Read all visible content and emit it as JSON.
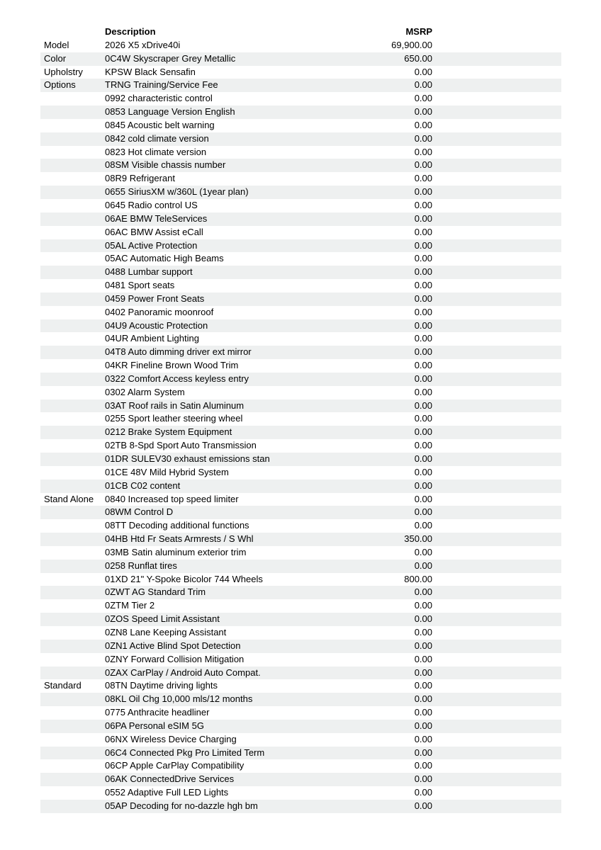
{
  "document": {
    "type": "vehicle-pricing-sheet"
  },
  "colors": {
    "background": "#ffffff",
    "stripe": "#eef0f0",
    "text": "#000000"
  },
  "table": {
    "header": {
      "category": "",
      "description": "Description",
      "msrp": "MSRP"
    },
    "rows": [
      {
        "category": "Model",
        "description": "2026 X5 xDrive40i",
        "msrp": "69,900.00"
      },
      {
        "category": "Color",
        "description": "0C4W Skyscraper Grey Metallic",
        "msrp": "650.00"
      },
      {
        "category": "Upholstry",
        "description": "KPSW Black Sensafin",
        "msrp": "0.00"
      },
      {
        "category": "Options",
        "description": "TRNG Training/Service Fee",
        "msrp": "0.00"
      },
      {
        "category": "",
        "description": "0992 characteristic control",
        "msrp": "0.00"
      },
      {
        "category": "",
        "description": "0853 Language Version English",
        "msrp": "0.00"
      },
      {
        "category": "",
        "description": "0845 Acoustic belt warning",
        "msrp": "0.00"
      },
      {
        "category": "",
        "description": "0842 cold climate version",
        "msrp": "0.00"
      },
      {
        "category": "",
        "description": "0823 Hot climate version",
        "msrp": "0.00"
      },
      {
        "category": "",
        "description": "08SM Visible chassis number",
        "msrp": "0.00"
      },
      {
        "category": "",
        "description": "08R9 Refrigerant",
        "msrp": "0.00"
      },
      {
        "category": "",
        "description": "0655 SiriusXM w/360L (1year plan)",
        "msrp": "0.00"
      },
      {
        "category": "",
        "description": "0645 Radio control US",
        "msrp": "0.00"
      },
      {
        "category": "",
        "description": "06AE BMW TeleServices",
        "msrp": "0.00"
      },
      {
        "category": "",
        "description": "06AC BMW Assist eCall",
        "msrp": "0.00"
      },
      {
        "category": "",
        "description": "05AL Active Protection",
        "msrp": "0.00"
      },
      {
        "category": "",
        "description": "05AC Automatic High Beams",
        "msrp": "0.00"
      },
      {
        "category": "",
        "description": "0488 Lumbar support",
        "msrp": "0.00"
      },
      {
        "category": "",
        "description": "0481 Sport seats",
        "msrp": "0.00"
      },
      {
        "category": "",
        "description": "0459 Power Front Seats",
        "msrp": "0.00"
      },
      {
        "category": "",
        "description": "0402 Panoramic moonroof",
        "msrp": "0.00"
      },
      {
        "category": "",
        "description": "04U9 Acoustic Protection",
        "msrp": "0.00"
      },
      {
        "category": "",
        "description": "04UR Ambient Lighting",
        "msrp": "0.00"
      },
      {
        "category": "",
        "description": "04T8 Auto dimming driver ext mirror",
        "msrp": "0.00"
      },
      {
        "category": "",
        "description": "04KR Fineline Brown Wood Trim",
        "msrp": "0.00"
      },
      {
        "category": "",
        "description": "0322 Comfort Access keyless entry",
        "msrp": "0.00"
      },
      {
        "category": "",
        "description": "0302 Alarm System",
        "msrp": "0.00"
      },
      {
        "category": "",
        "description": "03AT Roof rails in Satin Aluminum",
        "msrp": "0.00"
      },
      {
        "category": "",
        "description": "0255 Sport leather steering wheel",
        "msrp": "0.00"
      },
      {
        "category": "",
        "description": "0212 Brake System Equipment",
        "msrp": "0.00"
      },
      {
        "category": "",
        "description": "02TB 8-Spd Sport Auto Transmission",
        "msrp": "0.00"
      },
      {
        "category": "",
        "description": "01DR SULEV30 exhaust emissions stan",
        "msrp": "0.00"
      },
      {
        "category": "",
        "description": "01CE 48V Mild Hybrid System",
        "msrp": "0.00"
      },
      {
        "category": "",
        "description": "01CB C02 content",
        "msrp": "0.00"
      },
      {
        "category": "Stand Alone",
        "description": "0840 Increased top speed limiter",
        "msrp": "0.00"
      },
      {
        "category": "",
        "description": "08WM Control D",
        "msrp": "0.00"
      },
      {
        "category": "",
        "description": "08TT Decoding additional functions",
        "msrp": "0.00"
      },
      {
        "category": "",
        "description": "04HB Htd Fr Seats Armrests / S Whl",
        "msrp": "350.00"
      },
      {
        "category": "",
        "description": "03MB Satin aluminum exterior trim",
        "msrp": "0.00"
      },
      {
        "category": "",
        "description": "0258 Runflat tires",
        "msrp": "0.00"
      },
      {
        "category": "",
        "description": "01XD 21\" Y-Spoke Bicolor 744 Wheels",
        "msrp": "800.00"
      },
      {
        "category": "",
        "description": "0ZWT AG Standard Trim",
        "msrp": "0.00"
      },
      {
        "category": "",
        "description": "0ZTM Tier 2",
        "msrp": "0.00"
      },
      {
        "category": "",
        "description": "0ZOS Speed Limit Assistant",
        "msrp": "0.00"
      },
      {
        "category": "",
        "description": "0ZN8 Lane Keeping Assistant",
        "msrp": "0.00"
      },
      {
        "category": "",
        "description": "0ZN1 Active Blind Spot Detection",
        "msrp": "0.00"
      },
      {
        "category": "",
        "description": "0ZNY Forward Collision Mitigation",
        "msrp": "0.00"
      },
      {
        "category": "",
        "description": "0ZAX CarPlay / Android Auto Compat.",
        "msrp": "0.00"
      },
      {
        "category": "Standard",
        "description": "08TN Daytime driving lights",
        "msrp": "0.00"
      },
      {
        "category": "",
        "description": "08KL Oil Chg 10,000 mls/12 months",
        "msrp": "0.00"
      },
      {
        "category": "",
        "description": "0775 Anthracite headliner",
        "msrp": "0.00"
      },
      {
        "category": "",
        "description": "06PA Personal eSIM 5G",
        "msrp": "0.00"
      },
      {
        "category": "",
        "description": "06NX Wireless Device Charging",
        "msrp": "0.00"
      },
      {
        "category": "",
        "description": "06C4 Connected Pkg Pro Limited Term",
        "msrp": "0.00"
      },
      {
        "category": "",
        "description": "06CP Apple CarPlay Compatibility",
        "msrp": "0.00"
      },
      {
        "category": "",
        "description": "06AK ConnectedDrive Services",
        "msrp": "0.00"
      },
      {
        "category": "",
        "description": "0552 Adaptive Full LED Lights",
        "msrp": "0.00"
      },
      {
        "category": "",
        "description": "05AP Decoding for no-dazzle hgh bm",
        "msrp": "0.00"
      }
    ]
  }
}
